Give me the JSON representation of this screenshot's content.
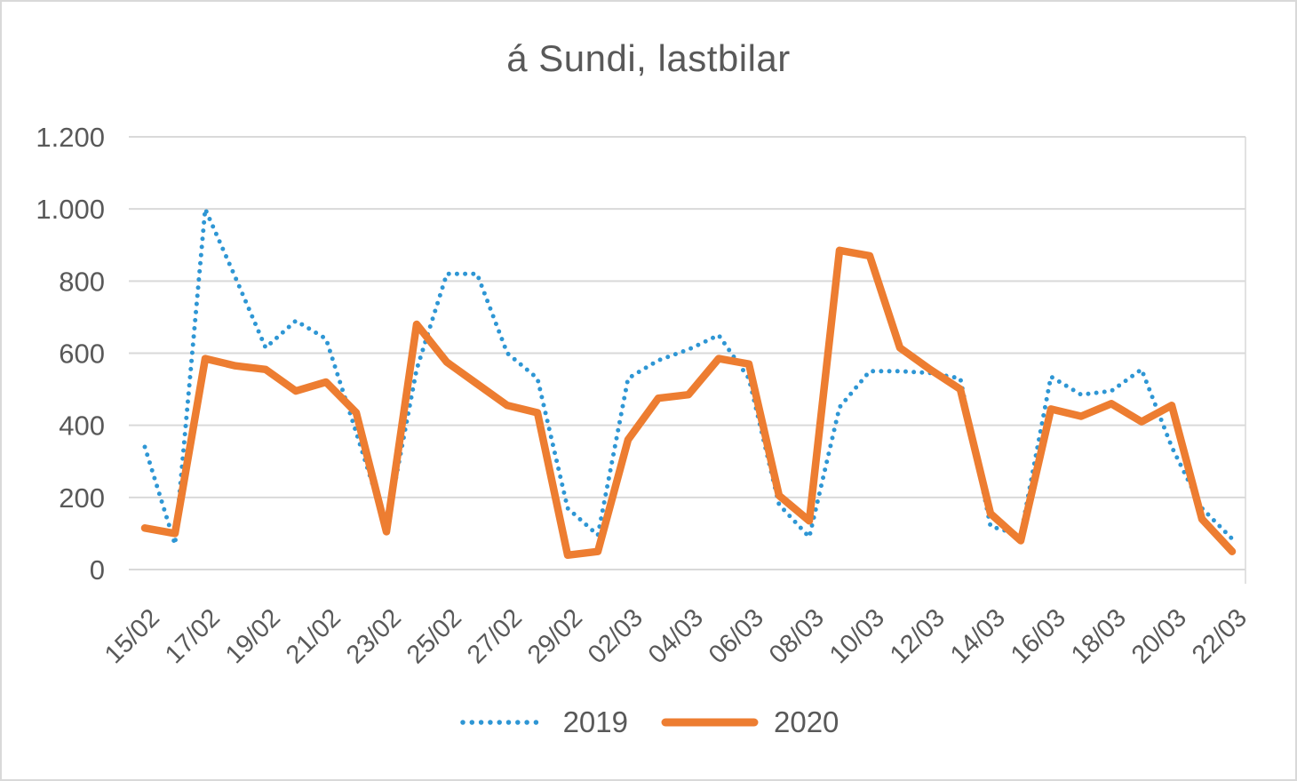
{
  "chart_data": {
    "type": "line",
    "title": "á Sundi, lastbilar",
    "categories": [
      "15/02",
      "16/02",
      "17/02",
      "18/02",
      "19/02",
      "20/02",
      "21/02",
      "22/02",
      "23/02",
      "24/02",
      "25/02",
      "26/02",
      "27/02",
      "28/02",
      "29/02",
      "01/03",
      "02/03",
      "03/03",
      "04/03",
      "05/03",
      "06/03",
      "07/03",
      "08/03",
      "09/03",
      "10/03",
      "11/03",
      "12/03",
      "13/03",
      "14/03",
      "15/03",
      "16/03",
      "17/03",
      "18/03",
      "19/03",
      "20/03",
      "21/03",
      "22/03"
    ],
    "series": [
      {
        "name": "2019",
        "style": "dotted",
        "color": "#2E96D4",
        "values": [
          340,
          70,
          1000,
          810,
          615,
          690,
          640,
          380,
          115,
          555,
          820,
          820,
          600,
          530,
          170,
          95,
          530,
          580,
          610,
          650,
          530,
          180,
          90,
          450,
          550,
          550,
          545,
          530,
          120,
          95,
          535,
          485,
          495,
          555,
          340,
          170,
          85
        ]
      },
      {
        "name": "2020",
        "style": "solid",
        "color": "#ED7D31",
        "values": [
          115,
          100,
          585,
          565,
          555,
          495,
          520,
          435,
          105,
          680,
          575,
          515,
          455,
          435,
          40,
          50,
          360,
          475,
          485,
          585,
          570,
          205,
          135,
          885,
          870,
          615,
          555,
          500,
          155,
          80,
          445,
          425,
          460,
          410,
          455,
          140,
          50
        ]
      }
    ],
    "y_axis": {
      "min": 0,
      "max": 1200,
      "tick_step": 200,
      "tick_labels": [
        "0",
        "200",
        "400",
        "600",
        "800",
        "1.000",
        "1.200"
      ]
    },
    "x_axis": {
      "label_every": 2,
      "label_rotation_deg": -45
    },
    "grid": "horizontal",
    "legend_position": "bottom",
    "colors": {
      "grid": "#D9D9D9",
      "text": "#595959",
      "background": "#FFFFFF"
    }
  }
}
